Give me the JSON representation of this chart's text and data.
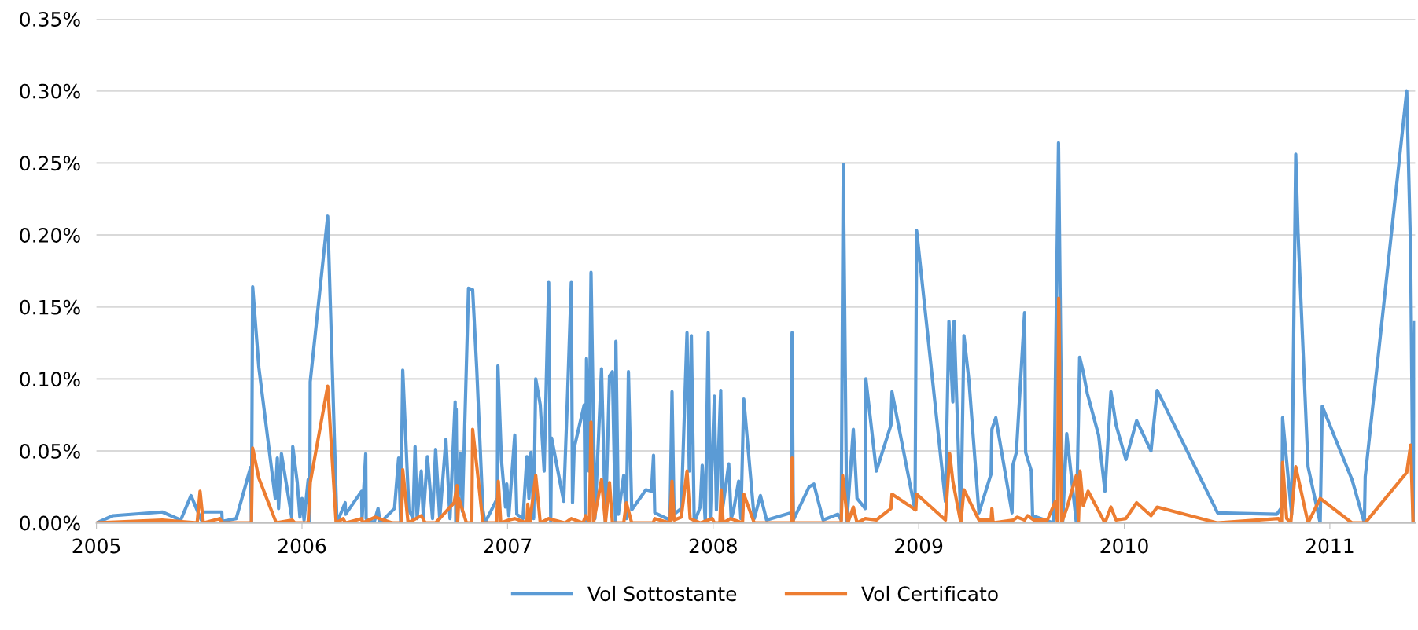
{
  "chart_data": {
    "type": "line",
    "xlim": [
      2005,
      2011.415
    ],
    "xticks": [
      2005,
      2006,
      2007,
      2008,
      2009,
      2010,
      2011
    ],
    "ylim": [
      0,
      0.35
    ],
    "yticks": [
      {
        "value": 0,
        "label": "0.00%"
      },
      {
        "value": 0.05,
        "label": "0.05%"
      },
      {
        "value": 0.1,
        "label": "0.10%"
      },
      {
        "value": 0.15,
        "label": "0.15%"
      },
      {
        "value": 0.2,
        "label": "0.20%"
      },
      {
        "value": 0.25,
        "label": "0.25%"
      },
      {
        "value": 0.3,
        "label": "0.30%"
      },
      {
        "value": 0.35,
        "label": "0.35%"
      }
    ],
    "grid": "y",
    "legend": "bottom",
    "line_style": "solid",
    "marker": "none",
    "series": [
      {
        "name": "Vol Sottostante",
        "color": "#5b9bd5",
        "x": [
          2005.0,
          2005.08,
          2005.32,
          2005.41,
          2005.46,
          2005.51,
          2005.52,
          2005.61,
          2005.612,
          2005.68,
          2005.75,
          2005.754,
          2005.76,
          2005.79,
          2005.87,
          2005.88,
          2005.886,
          2005.9,
          2005.95,
          2005.955,
          2005.977,
          2005.99,
          2006.0,
          2006.01,
          2006.03,
          2006.038,
          2006.04,
          2006.125,
          2006.17,
          2006.21,
          2006.212,
          2006.29,
          2006.292,
          2006.31,
          2006.312,
          2006.35,
          2006.37,
          2006.38,
          2006.45,
          2006.47,
          2006.48,
          2006.49,
          2006.52,
          2006.54,
          2006.55,
          2006.56,
          2006.58,
          2006.59,
          2006.61,
          2006.635,
          2006.65,
          2006.67,
          2006.7,
          2006.72,
          2006.745,
          2006.748,
          2006.75,
          2006.755,
          2006.77,
          2006.78,
          2006.81,
          2006.83,
          2006.85,
          2006.88,
          2006.89,
          2006.95,
          2006.953,
          2006.97,
          2006.99,
          2006.996,
          2007.006,
          2007.035,
          2007.045,
          2007.075,
          2007.094,
          2007.104,
          2007.114,
          2007.127,
          2007.137,
          2007.159,
          2007.178,
          2007.2,
          2007.21,
          2007.214,
          2007.273,
          2007.292,
          2007.31,
          2007.316,
          2007.324,
          2007.373,
          2007.378,
          2007.384,
          2007.396,
          2007.406,
          2007.425,
          2007.457,
          2007.476,
          2007.496,
          2007.51,
          2007.525,
          2007.527,
          2007.539,
          2007.565,
          2007.578,
          2007.588,
          2007.604,
          2007.673,
          2007.7,
          2007.71,
          2007.716,
          2007.79,
          2007.8,
          2007.81,
          2007.845,
          2007.873,
          2007.884,
          2007.894,
          2007.908,
          2007.937,
          2007.947,
          2007.962,
          2007.976,
          2007.986,
          2008.006,
          2008.016,
          2008.037,
          2008.045,
          2008.076,
          2008.088,
          2008.1,
          2008.124,
          2008.135,
          2008.149,
          2008.2,
          2008.23,
          2008.26,
          2008.38,
          2008.384,
          2008.39,
          2008.467,
          2008.49,
          2008.535,
          2008.606,
          2008.623,
          2008.633,
          2008.65,
          2008.682,
          2008.7,
          2008.74,
          2008.743,
          2008.794,
          2008.865,
          2008.87,
          2008.982,
          2008.99,
          2009.13,
          2009.147,
          2009.166,
          2009.172,
          2009.205,
          2009.22,
          2009.245,
          2009.293,
          2009.352,
          2009.356,
          2009.375,
          2009.454,
          2009.458,
          2009.475,
          2009.515,
          2009.52,
          2009.548,
          2009.554,
          2009.656,
          2009.68,
          2009.7,
          2009.72,
          2009.767,
          2009.783,
          2009.8,
          2009.82,
          2009.875,
          2009.906,
          2009.935,
          2009.96,
          2010.008,
          2010.06,
          2010.13,
          2010.16,
          2010.454,
          2010.742,
          2010.767,
          2010.77,
          2010.814,
          2010.834,
          2010.845,
          2010.894,
          2010.953,
          2010.963,
          2011.108,
          2011.168,
          2011.172,
          2011.374,
          2011.393,
          2011.405,
          2011.413
        ],
        "values": [
          0,
          0.005,
          0.0076,
          0.002,
          0.019,
          0.002,
          0.0076,
          0.0076,
          0.001,
          0.003,
          0.0386,
          0,
          0.164,
          0.108,
          0.017,
          0.045,
          0.01,
          0.048,
          0.004,
          0.053,
          0.028,
          0.004,
          0.017,
          0.002,
          0.03,
          0,
          0.098,
          0.213,
          0,
          0.014,
          0.006,
          0.022,
          0.002,
          0.048,
          0.003,
          0,
          0.01,
          0,
          0.01,
          0.045,
          0,
          0.106,
          0.009,
          0.003,
          0.053,
          0.003,
          0.036,
          0.004,
          0.046,
          0.003,
          0.051,
          0.003,
          0.058,
          0.003,
          0.084,
          0,
          0.079,
          0.002,
          0.048,
          0.008,
          0.163,
          0.162,
          0.107,
          0.009,
          0,
          0.017,
          0.109,
          0.044,
          0.011,
          0.027,
          0.005,
          0.061,
          0.006,
          0.003,
          0.046,
          0.017,
          0.049,
          0.003,
          0.1,
          0.082,
          0.036,
          0.167,
          0,
          0.059,
          0.015,
          0.09,
          0.167,
          0.014,
          0.052,
          0.082,
          0,
          0.114,
          0.036,
          0.174,
          0.003,
          0.107,
          0,
          0.102,
          0.105,
          0,
          0.126,
          0.006,
          0.033,
          0.003,
          0.105,
          0.009,
          0.023,
          0.022,
          0.047,
          0.007,
          0.002,
          0.091,
          0.006,
          0.01,
          0.132,
          0.036,
          0.13,
          0,
          0.011,
          0.04,
          0,
          0.132,
          0.003,
          0.088,
          0.009,
          0.092,
          0.009,
          0.041,
          0.003,
          0.009,
          0.029,
          0.003,
          0.086,
          0.003,
          0.019,
          0.002,
          0.007,
          0.132,
          0.002,
          0.025,
          0.027,
          0.002,
          0.006,
          0.002,
          0.249,
          0,
          0.065,
          0.017,
          0.01,
          0.1,
          0.036,
          0.068,
          0.091,
          0.009,
          0.203,
          0.015,
          0.14,
          0.084,
          0.14,
          0,
          0.13,
          0.098,
          0.007,
          0.034,
          0.065,
          0.073,
          0.007,
          0.04,
          0.049,
          0.146,
          0.049,
          0.036,
          0.005,
          0,
          0.264,
          0,
          0.062,
          0,
          0.115,
          0.105,
          0.09,
          0.061,
          0.022,
          0.091,
          0.068,
          0.044,
          0.071,
          0.05,
          0.092,
          0.007,
          0.006,
          0.011,
          0.073,
          0.006,
          0.256,
          0.202,
          0.039,
          0,
          0.081,
          0.03,
          0,
          0.032,
          0.3,
          0.188,
          0,
          0.139
        ]
      },
      {
        "name": "Vol Certificato",
        "color": "#ed7d31",
        "x": [
          2005.0,
          2005.32,
          2005.49,
          2005.504,
          2005.52,
          2005.6,
          2005.612,
          2005.754,
          2005.76,
          2005.79,
          2005.875,
          2005.953,
          2005.965,
          2006.03,
          2006.04,
          2006.125,
          2006.166,
          2006.2,
          2006.212,
          2006.29,
          2006.295,
          2006.355,
          2006.44,
          2006.484,
          2006.49,
          2006.516,
          2006.58,
          2006.6,
          2006.65,
          2006.74,
          2006.754,
          2006.757,
          2006.763,
          2006.8,
          2006.826,
          2006.83,
          2006.853,
          2006.88,
          2006.947,
          2006.955,
          2006.967,
          2007.006,
          2007.035,
          2007.094,
          2007.098,
          2007.108,
          2007.137,
          2007.159,
          2007.2,
          2007.28,
          2007.31,
          2007.367,
          2007.38,
          2007.398,
          2007.406,
          2007.418,
          2007.457,
          2007.476,
          2007.496,
          2007.51,
          2007.565,
          2007.578,
          2007.604,
          2007.708,
          2007.716,
          2007.79,
          2007.8,
          2007.81,
          2007.845,
          2007.873,
          2007.888,
          2007.937,
          2007.996,
          2008.006,
          2008.033,
          2008.039,
          2008.049,
          2008.084,
          2008.143,
          2008.149,
          2008.2,
          2008.38,
          2008.384,
          2008.39,
          2008.623,
          2008.63,
          2008.655,
          2008.682,
          2008.7,
          2008.74,
          2008.794,
          2008.865,
          2008.87,
          2008.986,
          2008.99,
          2009.13,
          2009.151,
          2009.166,
          2009.205,
          2009.22,
          2009.293,
          2009.352,
          2009.356,
          2009.362,
          2009.46,
          2009.48,
          2009.515,
          2009.53,
          2009.56,
          2009.626,
          2009.665,
          2009.675,
          2009.681,
          2009.695,
          2009.72,
          2009.767,
          2009.777,
          2009.785,
          2009.8,
          2009.824,
          2009.906,
          2009.935,
          2009.96,
          2010.008,
          2010.06,
          2010.13,
          2010.16,
          2010.454,
          2010.75,
          2010.765,
          2010.77,
          2010.79,
          2010.81,
          2010.834,
          2010.894,
          2010.953,
          2011.108,
          2011.172,
          2011.374,
          2011.393,
          2011.405
        ],
        "values": [
          0,
          0.002,
          0,
          0.022,
          0,
          0.003,
          0,
          0,
          0.052,
          0.031,
          0,
          0.002,
          0,
          0,
          0.028,
          0.095,
          0,
          0.003,
          0,
          0.003,
          0,
          0.004,
          0,
          0,
          0.037,
          0,
          0.005,
          0,
          0,
          0.014,
          0.026,
          0,
          0.017,
          0,
          0,
          0.065,
          0.036,
          0,
          0,
          0.029,
          0,
          0.002,
          0.003,
          0,
          0.013,
          0,
          0.033,
          0,
          0.003,
          0,
          0.003,
          0,
          0.005,
          0,
          0.07,
          0,
          0.03,
          0,
          0.028,
          0,
          0,
          0.014,
          0,
          0,
          0.003,
          0,
          0.029,
          0.002,
          0.004,
          0.036,
          0.003,
          0,
          0.003,
          0,
          0,
          0.023,
          0,
          0.003,
          0,
          0.02,
          0,
          0,
          0.045,
          0,
          0,
          0.033,
          0,
          0.011,
          0,
          0.003,
          0.002,
          0.01,
          0.02,
          0.009,
          0.02,
          0.002,
          0.048,
          0.029,
          0,
          0.023,
          0.002,
          0.002,
          0.01,
          0,
          0.002,
          0.004,
          0.002,
          0.005,
          0.002,
          0.002,
          0.015,
          0,
          0.156,
          0,
          0.01,
          0.033,
          0,
          0.036,
          0.012,
          0.022,
          0,
          0.011,
          0.002,
          0.003,
          0.014,
          0.005,
          0.011,
          0,
          0.003,
          0,
          0.042,
          0.003,
          0,
          0.039,
          0,
          0.017,
          0,
          0,
          0.035,
          0.054,
          0
        ]
      }
    ]
  }
}
